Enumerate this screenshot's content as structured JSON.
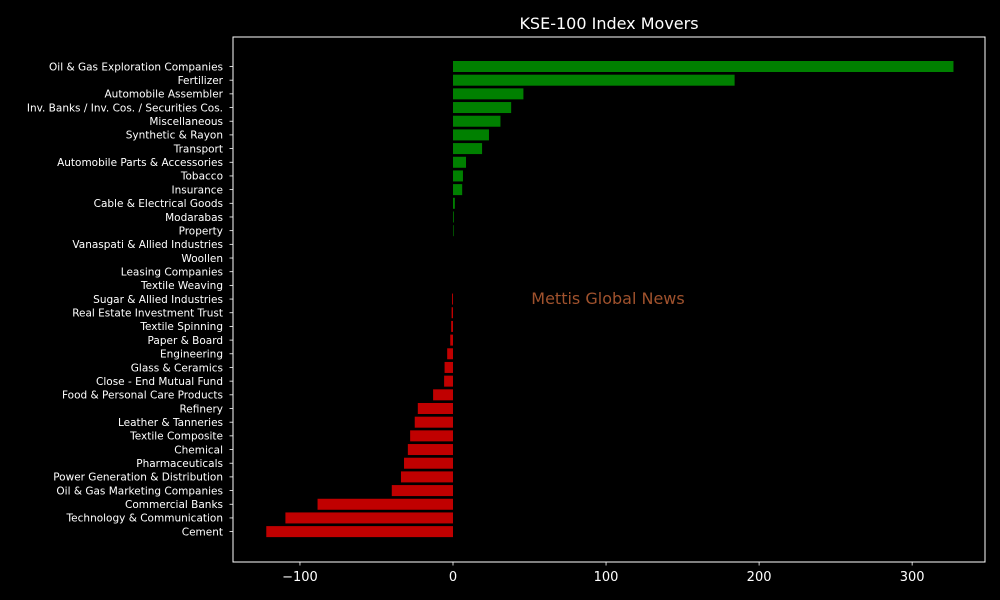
{
  "chart_data": {
    "type": "bar",
    "orientation": "horizontal",
    "title": "KSE-100 Index Movers",
    "watermark": "Mettis Global News",
    "xlabel": "",
    "ylabel": "",
    "xlim": [
      -145,
      350
    ],
    "xticks": [
      -100,
      0,
      100,
      200,
      300
    ],
    "xtick_labels": [
      "−100",
      "0",
      "100",
      "200",
      "300"
    ],
    "grid": false,
    "legend": "none",
    "colors": {
      "positive": "#008000",
      "negative": "#c00000",
      "background": "#000000",
      "axes": "#ffffff",
      "watermark": "#a0522d"
    },
    "categories": [
      "Oil & Gas Exploration Companies",
      "Fertilizer",
      "Automobile Assembler",
      "Inv. Banks / Inv. Cos. / Securities Cos.",
      "Miscellaneous",
      "Synthetic & Rayon",
      "Transport",
      "Automobile Parts & Accessories",
      "Tobacco",
      "Insurance",
      "Cable & Electrical Goods",
      "Modarabas",
      "Property",
      "Vanaspati & Allied Industries",
      "Woollen",
      "Leasing Companies",
      "Textile Weaving",
      "Sugar & Allied Industries",
      "Real Estate Investment Trust",
      "Textile Spinning",
      "Paper & Board",
      "Engineering",
      "Glass & Ceramics",
      "Close - End Mutual Fund",
      "Food & Personal Care Products",
      "Refinery",
      "Leather & Tanneries",
      "Textile Composite",
      "Chemical",
      "Pharmaceuticals",
      "Power Generation & Distribution",
      "Oil & Gas Marketing Companies",
      "Commercial Banks",
      "Technology & Communication",
      "Cement"
    ],
    "values": [
      327,
      184,
      46,
      38,
      31,
      23.5,
      19,
      8.5,
      6.5,
      6,
      1.2,
      0.5,
      0.4,
      0,
      0,
      0,
      0,
      -0.6,
      -0.9,
      -1.2,
      -1.8,
      -3.8,
      -5.5,
      -5.8,
      -13,
      -23,
      -25,
      -28,
      -29.5,
      -32,
      -34,
      -40,
      -88.5,
      -109.5,
      -122
    ]
  }
}
